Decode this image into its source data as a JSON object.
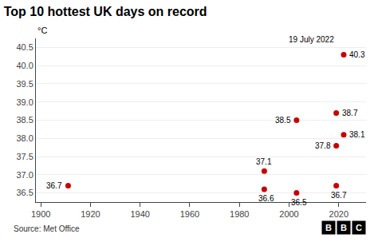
{
  "chart_data": {
    "type": "scatter",
    "title": "Top 10 hottest UK days on record",
    "ylabel": "°C",
    "source": "Source: Met Office",
    "logo": "BBC",
    "x": [
      1911,
      1990,
      1990,
      2003,
      2003,
      2019,
      2019,
      2019,
      2022,
      2022
    ],
    "values": [
      36.7,
      36.6,
      37.1,
      36.5,
      38.5,
      36.7,
      37.8,
      38.7,
      38.1,
      40.3
    ],
    "data_labels": true,
    "color": "#cc0000",
    "annotations": [
      {
        "text": "19 July 2022",
        "x": 2009,
        "y": 40.55
      }
    ],
    "xlim": [
      1898,
      2031
    ],
    "xticks": [
      1900,
      1920,
      1940,
      1960,
      1980,
      2000,
      2020
    ],
    "ylim": [
      36.25,
      40.75
    ],
    "yticks": [
      36.5,
      {
        "value": 37,
        "label": "37.0"
      },
      37.5,
      {
        "value": 38,
        "label": "38.0"
      },
      38.5,
      {
        "value": 39,
        "label": "39.0"
      },
      39.5,
      {
        "value": 40,
        "label": "40.0"
      },
      40.5
    ],
    "grid": true
  }
}
